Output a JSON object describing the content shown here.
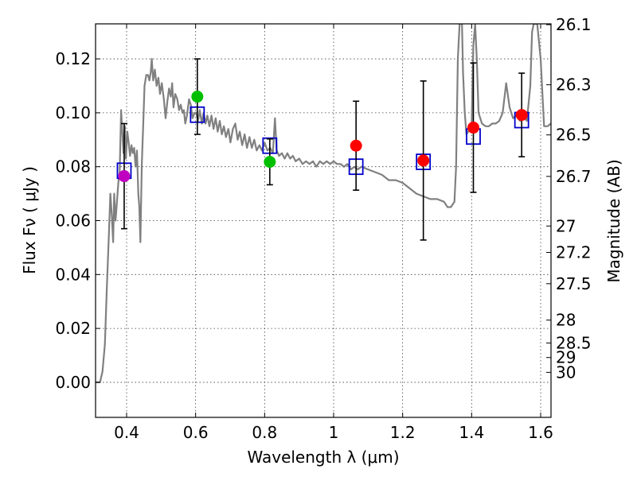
{
  "chart_data": {
    "type": "scatter",
    "xlabel": "Wavelength  λ (μm)",
    "ylabel": "Flux  Fν  ( μJy )",
    "y2label": "Magnitude (AB)",
    "xlim": [
      0.31,
      1.63
    ],
    "ylim": [
      -0.013,
      0.133
    ],
    "x_ticks": [
      0.4,
      0.6,
      0.8,
      1.0,
      1.2,
      1.4,
      1.6
    ],
    "x_tick_labels": [
      "0.4",
      "0.6",
      "0.8",
      "1",
      "1.2",
      "1.4",
      "1.6"
    ],
    "y_ticks": [
      0.0,
      0.02,
      0.04,
      0.06,
      0.08,
      0.1,
      0.12
    ],
    "y_tick_labels": [
      "0.00",
      "0.02",
      "0.04",
      "0.06",
      "0.08",
      "0.10",
      "0.12"
    ],
    "mag_ticks": [
      {
        "label": "26.1",
        "flux": 0.1327
      },
      {
        "label": "26.3",
        "flux": 0.1104
      },
      {
        "label": "26.5",
        "flux": 0.0918
      },
      {
        "label": "26.7",
        "flux": 0.0764
      },
      {
        "label": "27",
        "flux": 0.058
      },
      {
        "label": "27.2",
        "flux": 0.0482
      },
      {
        "label": "27.5",
        "flux": 0.0366
      },
      {
        "label": "28",
        "flux": 0.0231
      },
      {
        "label": "28.5",
        "flux": 0.0146
      },
      {
        "label": "29",
        "flux": 0.0092
      },
      {
        "label": "30",
        "flux": 0.0037
      }
    ],
    "series": [
      {
        "name": "observed photometry",
        "points": [
          {
            "x": 0.393,
            "y": 0.0765,
            "yerr": 0.0195,
            "color": "#bf00bf"
          },
          {
            "x": 0.605,
            "y": 0.106,
            "yerr": 0.014,
            "color": "#00bf00"
          },
          {
            "x": 0.815,
            "y": 0.0818,
            "yerr": 0.0085,
            "color": "#00bf00"
          },
          {
            "x": 1.065,
            "y": 0.0878,
            "yerr": 0.0165,
            "color": "#ff0000"
          },
          {
            "x": 1.26,
            "y": 0.0823,
            "yerr": 0.0295,
            "color": "#ff0000"
          },
          {
            "x": 1.405,
            "y": 0.0945,
            "yerr": 0.024,
            "color": "#ff0000"
          },
          {
            "x": 1.545,
            "y": 0.0992,
            "yerr": 0.0155,
            "color": "#ff0000"
          }
        ]
      },
      {
        "name": "model photometry",
        "color": "#0000cc",
        "points": [
          {
            "x": 0.393,
            "y": 0.0785
          },
          {
            "x": 0.605,
            "y": 0.0993
          },
          {
            "x": 0.815,
            "y": 0.0878
          },
          {
            "x": 1.065,
            "y": 0.08
          },
          {
            "x": 1.26,
            "y": 0.0818
          },
          {
            "x": 1.405,
            "y": 0.0912
          },
          {
            "x": 1.545,
            "y": 0.0973
          }
        ]
      },
      {
        "name": "model spectrum (SED)",
        "color": "#808080",
        "points": [
          [
            0.311,
            0.0
          ],
          [
            0.323,
            0.0
          ],
          [
            0.33,
            0.004
          ],
          [
            0.337,
            0.014
          ],
          [
            0.343,
            0.036
          ],
          [
            0.349,
            0.056
          ],
          [
            0.353,
            0.07
          ],
          [
            0.357,
            0.062
          ],
          [
            0.361,
            0.052
          ],
          [
            0.364,
            0.07
          ],
          [
            0.368,
            0.06
          ],
          [
            0.372,
            0.067
          ],
          [
            0.376,
            0.074
          ],
          [
            0.38,
            0.078
          ],
          [
            0.384,
            0.101
          ],
          [
            0.387,
            0.094
          ],
          [
            0.391,
            0.085
          ],
          [
            0.395,
            0.095
          ],
          [
            0.398,
            0.083
          ],
          [
            0.402,
            0.093
          ],
          [
            0.406,
            0.089
          ],
          [
            0.41,
            0.084
          ],
          [
            0.414,
            0.088
          ],
          [
            0.418,
            0.085
          ],
          [
            0.422,
            0.087
          ],
          [
            0.426,
            0.08
          ],
          [
            0.43,
            0.086
          ],
          [
            0.434,
            0.07
          ],
          [
            0.437,
            0.065
          ],
          [
            0.44,
            0.052
          ],
          [
            0.444,
            0.081
          ],
          [
            0.448,
            0.095
          ],
          [
            0.452,
            0.11
          ],
          [
            0.457,
            0.114
          ],
          [
            0.462,
            0.114
          ],
          [
            0.466,
            0.112
          ],
          [
            0.47,
            0.115
          ],
          [
            0.473,
            0.12
          ],
          [
            0.477,
            0.112
          ],
          [
            0.482,
            0.116
          ],
          [
            0.487,
            0.11
          ],
          [
            0.492,
            0.113
          ],
          [
            0.497,
            0.107
          ],
          [
            0.502,
            0.111
          ],
          [
            0.508,
            0.105
          ],
          [
            0.513,
            0.098
          ],
          [
            0.518,
            0.104
          ],
          [
            0.523,
            0.109
          ],
          [
            0.528,
            0.106
          ],
          [
            0.532,
            0.111
          ],
          [
            0.536,
            0.102
          ],
          [
            0.541,
            0.107
          ],
          [
            0.547,
            0.105
          ],
          [
            0.552,
            0.101
          ],
          [
            0.557,
            0.103
          ],
          [
            0.562,
            0.1
          ],
          [
            0.566,
            0.101
          ],
          [
            0.57,
            0.096
          ],
          [
            0.575,
            0.099
          ],
          [
            0.581,
            0.105
          ],
          [
            0.586,
            0.103
          ],
          [
            0.591,
            0.098
          ],
          [
            0.597,
            0.1
          ],
          [
            0.602,
            0.1
          ],
          [
            0.607,
            0.097
          ],
          [
            0.612,
            0.101
          ],
          [
            0.618,
            0.096
          ],
          [
            0.623,
            0.1
          ],
          [
            0.629,
            0.096
          ],
          [
            0.634,
            0.099
          ],
          [
            0.64,
            0.095
          ],
          [
            0.646,
            0.099
          ],
          [
            0.652,
            0.094
          ],
          [
            0.658,
            0.098
          ],
          [
            0.664,
            0.093
          ],
          [
            0.67,
            0.097
          ],
          [
            0.676,
            0.092
          ],
          [
            0.682,
            0.095
          ],
          [
            0.688,
            0.091
          ],
          [
            0.695,
            0.094
          ],
          [
            0.701,
            0.089
          ],
          [
            0.708,
            0.094
          ],
          [
            0.715,
            0.096
          ],
          [
            0.722,
            0.09
          ],
          [
            0.728,
            0.093
          ],
          [
            0.735,
            0.088
          ],
          [
            0.742,
            0.092
          ],
          [
            0.749,
            0.087
          ],
          [
            0.756,
            0.091
          ],
          [
            0.763,
            0.087
          ],
          [
            0.77,
            0.09
          ],
          [
            0.777,
            0.086
          ],
          [
            0.785,
            0.088
          ],
          [
            0.792,
            0.086
          ],
          [
            0.8,
            0.089
          ],
          [
            0.808,
            0.086
          ],
          [
            0.816,
            0.087
          ],
          [
            0.824,
            0.085
          ],
          [
            0.83,
            0.098
          ],
          [
            0.835,
            0.086
          ],
          [
            0.842,
            0.084
          ],
          [
            0.85,
            0.085
          ],
          [
            0.858,
            0.083
          ],
          [
            0.866,
            0.085
          ],
          [
            0.874,
            0.083
          ],
          [
            0.882,
            0.084
          ],
          [
            0.89,
            0.082
          ],
          [
            0.9,
            0.083
          ],
          [
            0.91,
            0.081
          ],
          [
            0.92,
            0.082
          ],
          [
            0.93,
            0.081
          ],
          [
            0.94,
            0.082
          ],
          [
            0.95,
            0.08
          ],
          [
            0.96,
            0.082
          ],
          [
            0.97,
            0.081
          ],
          [
            0.98,
            0.082
          ],
          [
            0.99,
            0.081
          ],
          [
            1.0,
            0.082
          ],
          [
            1.01,
            0.081
          ],
          [
            1.02,
            0.081
          ],
          [
            1.03,
            0.08
          ],
          [
            1.04,
            0.081
          ],
          [
            1.05,
            0.079
          ],
          [
            1.06,
            0.08
          ],
          [
            1.07,
            0.079
          ],
          [
            1.08,
            0.08
          ],
          [
            1.1,
            0.079
          ],
          [
            1.12,
            0.078
          ],
          [
            1.14,
            0.077
          ],
          [
            1.16,
            0.075
          ],
          [
            1.18,
            0.075
          ],
          [
            1.2,
            0.074
          ],
          [
            1.22,
            0.072
          ],
          [
            1.24,
            0.07
          ],
          [
            1.26,
            0.069
          ],
          [
            1.28,
            0.068
          ],
          [
            1.3,
            0.068
          ],
          [
            1.32,
            0.067
          ],
          [
            1.33,
            0.065
          ],
          [
            1.34,
            0.065
          ],
          [
            1.35,
            0.067
          ],
          [
            1.355,
            0.08
          ],
          [
            1.36,
            0.12
          ],
          [
            1.365,
            0.133
          ],
          [
            1.372,
            0.133
          ],
          [
            1.375,
            0.115
          ],
          [
            1.38,
            0.1
          ],
          [
            1.385,
            0.092
          ],
          [
            1.39,
            0.093
          ],
          [
            1.395,
            0.094
          ],
          [
            1.4,
            0.095
          ],
          [
            1.405,
            0.125
          ],
          [
            1.41,
            0.133
          ],
          [
            1.415,
            0.12
          ],
          [
            1.42,
            0.1
          ],
          [
            1.43,
            0.096
          ],
          [
            1.44,
            0.095
          ],
          [
            1.45,
            0.095
          ],
          [
            1.46,
            0.096
          ],
          [
            1.47,
            0.096
          ],
          [
            1.48,
            0.097
          ],
          [
            1.49,
            0.1
          ],
          [
            1.5,
            0.111
          ],
          [
            1.51,
            0.102
          ],
          [
            1.52,
            0.098
          ],
          [
            1.53,
            0.099
          ],
          [
            1.54,
            0.097
          ],
          [
            1.55,
            0.099
          ],
          [
            1.56,
            0.097
          ],
          [
            1.57,
            0.11
          ],
          [
            1.575,
            0.13
          ],
          [
            1.58,
            0.133
          ],
          [
            1.59,
            0.133
          ],
          [
            1.6,
            0.12
          ],
          [
            1.61,
            0.095
          ],
          [
            1.62,
            0.095
          ],
          [
            1.63,
            0.096
          ]
        ]
      }
    ]
  }
}
